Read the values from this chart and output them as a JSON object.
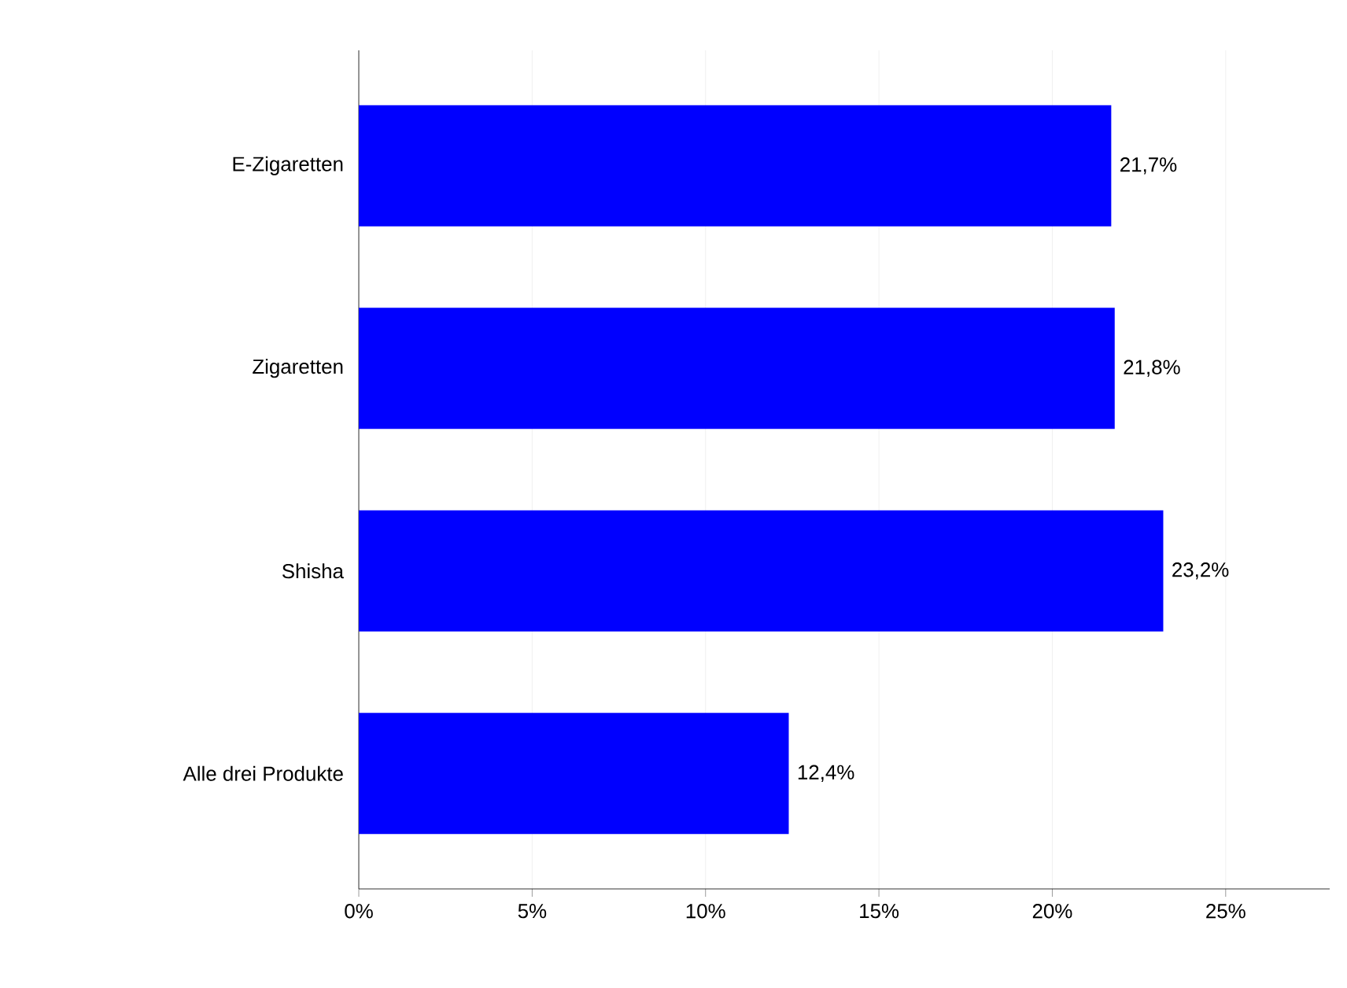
{
  "chart_data": {
    "type": "bar",
    "orientation": "horizontal",
    "categories": [
      "E-Zigaretten",
      "Zigaretten",
      "Shisha",
      "Alle drei Produkte"
    ],
    "values": [
      21.7,
      21.8,
      23.2,
      12.4
    ],
    "value_labels": [
      "21,7%",
      "21,8%",
      "23,2%",
      "12,4%"
    ],
    "color": "#0000ff",
    "xlim": [
      0,
      28
    ],
    "xticks": [
      {
        "value": 0,
        "label": "0%"
      },
      {
        "value": 5,
        "label": "5%"
      },
      {
        "value": 10,
        "label": "10%"
      },
      {
        "value": 15,
        "label": "15%"
      },
      {
        "value": 20,
        "label": "20%"
      },
      {
        "value": 25,
        "label": "25%"
      }
    ],
    "grid": "x"
  }
}
